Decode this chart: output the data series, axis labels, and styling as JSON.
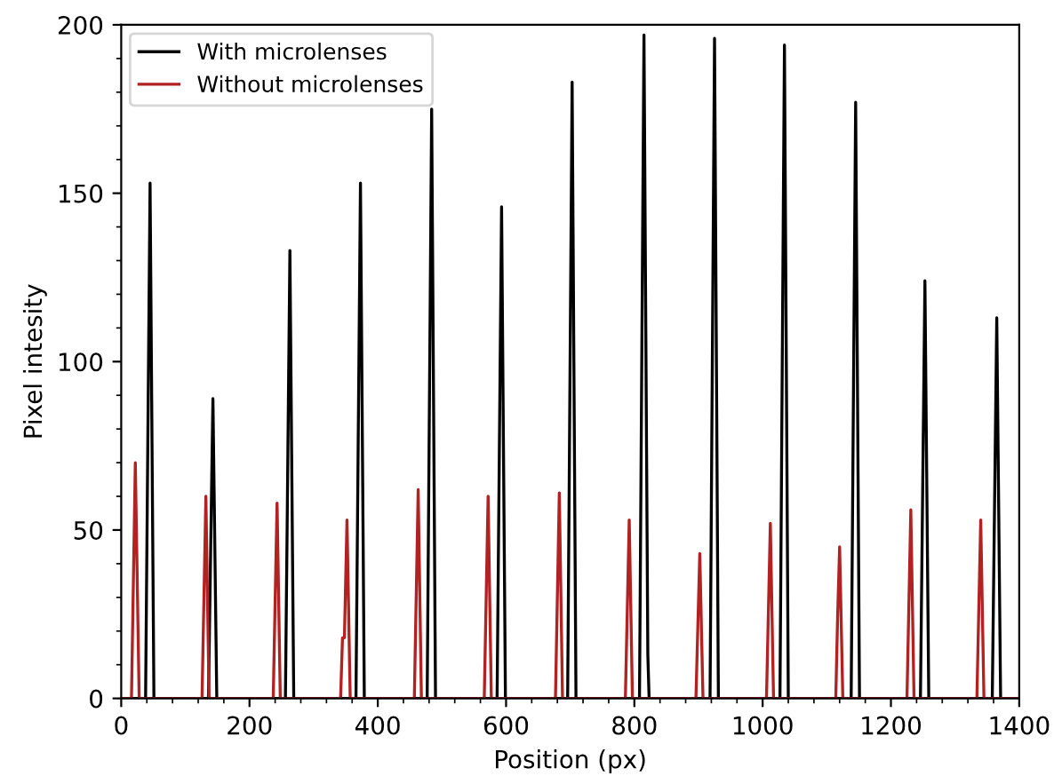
{
  "chart_data": {
    "type": "line",
    "xlabel": "Position (px)",
    "ylabel": "Pixel intesity",
    "xlim": [
      0,
      1400
    ],
    "ylim": [
      0,
      200
    ],
    "xticks": [
      0,
      200,
      400,
      600,
      800,
      1000,
      1200,
      1400
    ],
    "yticks": [
      0,
      50,
      100,
      150,
      200
    ],
    "grid": false,
    "legend": "top left",
    "marker": "none",
    "line_style": "solid",
    "series": [
      {
        "name": "With microlenses",
        "color": "#000000",
        "x": [
          0,
          38,
          45,
          51,
          136,
          143,
          149,
          256,
          263,
          269,
          366,
          373,
          379,
          477,
          484,
          490,
          586,
          593,
          599,
          696,
          703,
          709,
          808,
          815,
          821,
          823,
          918,
          925,
          931,
          1027,
          1034,
          1040,
          1138,
          1145,
          1151,
          1246,
          1253,
          1259,
          1358,
          1365,
          1371,
          1400
        ],
        "values": [
          0,
          0,
          153,
          0,
          0,
          89,
          0,
          0,
          133,
          0,
          0,
          153,
          0,
          0,
          175,
          0,
          0,
          146,
          0,
          0,
          183,
          0,
          0,
          197,
          13,
          0,
          0,
          196,
          0,
          0,
          194,
          0,
          0,
          177,
          0,
          0,
          124,
          0,
          0,
          113,
          0,
          0
        ]
      },
      {
        "name": "Without microlenses",
        "color": "#b22222",
        "x": [
          0,
          16,
          22,
          28,
          126,
          132,
          137,
          237,
          243,
          248,
          342,
          345,
          348,
          352,
          357,
          457,
          463,
          468,
          566,
          572,
          577,
          677,
          683,
          688,
          786,
          792,
          797,
          896,
          902,
          907,
          1006,
          1012,
          1017,
          1114,
          1117,
          1120,
          1125,
          1225,
          1231,
          1236,
          1334,
          1340,
          1345,
          1400
        ],
        "values": [
          0,
          0,
          70,
          0,
          0,
          60,
          0,
          0,
          58,
          0,
          0,
          18,
          18,
          53,
          0,
          0,
          62,
          0,
          0,
          60,
          0,
          0,
          61,
          0,
          0,
          53,
          0,
          0,
          43,
          0,
          0,
          52,
          0,
          0,
          25,
          45,
          0,
          0,
          56,
          0,
          0,
          53,
          0,
          0
        ]
      }
    ]
  }
}
